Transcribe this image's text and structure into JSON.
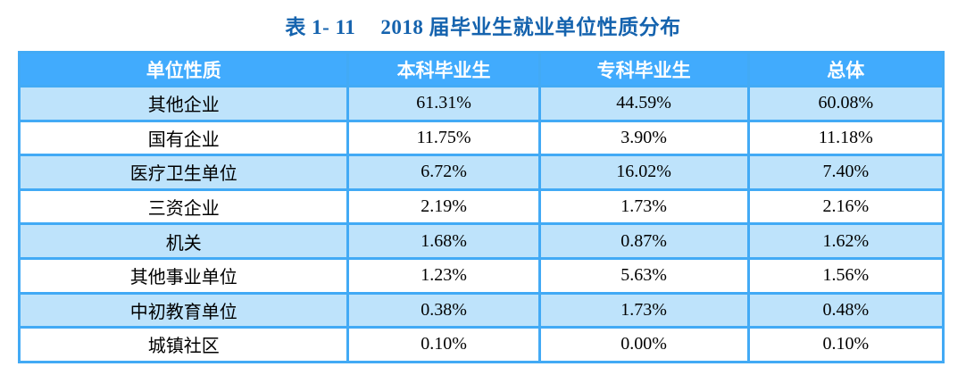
{
  "title": {
    "label": "表 1- 11",
    "text": "2018 届毕业生就业单位性质分布"
  },
  "table": {
    "columns": [
      "单位性质",
      "本科毕业生",
      "专科毕业生",
      "总体"
    ],
    "rows": [
      {
        "unit": "其他企业",
        "undergraduate": "61.31%",
        "junior_college": "44.59%",
        "overall": "60.08%"
      },
      {
        "unit": "国有企业",
        "undergraduate": "11.75%",
        "junior_college": "3.90%",
        "overall": "11.18%"
      },
      {
        "unit": "医疗卫生单位",
        "undergraduate": "6.72%",
        "junior_college": "16.02%",
        "overall": "7.40%"
      },
      {
        "unit": "三资企业",
        "undergraduate": "2.19%",
        "junior_college": "1.73%",
        "overall": "2.16%"
      },
      {
        "unit": "机关",
        "undergraduate": "1.68%",
        "junior_college": "0.87%",
        "overall": "1.62%"
      },
      {
        "unit": "其他事业单位",
        "undergraduate": "1.23%",
        "junior_college": "5.63%",
        "overall": "1.56%"
      },
      {
        "unit": "中初教育单位",
        "undergraduate": "0.38%",
        "junior_college": "1.73%",
        "overall": "0.48%"
      },
      {
        "unit": "城镇社区",
        "undergraduate": "0.10%",
        "junior_college": "0.00%",
        "overall": "0.10%"
      }
    ]
  },
  "colors": {
    "title_text": "#1563ae",
    "header_background": "#41abfd",
    "header_text": "#ffffff",
    "border": "#42aaf5",
    "alt_row_background": "#bee3fb",
    "row_background": "#ffffff",
    "cell_text": "#000000"
  }
}
